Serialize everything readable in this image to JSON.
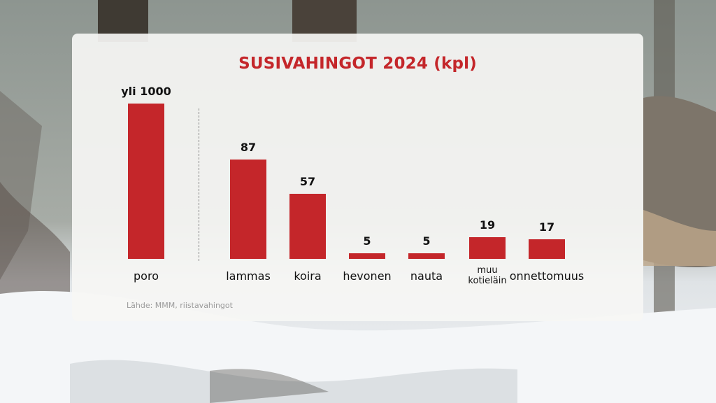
{
  "chart_data": {
    "type": "bar",
    "title": "SUSIVAHINGOT 2024 (kpl)",
    "categories": [
      "poro",
      "lammas",
      "koira",
      "hevonen",
      "nauta",
      "muu kotieläin",
      "onnettomuus"
    ],
    "category_lines": [
      [
        "poro"
      ],
      [
        "lammas"
      ],
      [
        "koira"
      ],
      [
        "hevonen"
      ],
      [
        "nauta"
      ],
      [
        "muu",
        "kotieläin"
      ],
      [
        "onnettomuus"
      ]
    ],
    "values": [
      1000,
      87,
      57,
      5,
      5,
      19,
      17
    ],
    "value_labels": [
      "yli 1000",
      "87",
      "57",
      "5",
      "5",
      "19",
      "17"
    ],
    "axis_break_after_category": "poro",
    "bar_color": "#c4262a",
    "source": "Lähde: MMM, riistavahingot"
  },
  "colors": {
    "accent": "#c4262a",
    "panel": "#f6f6f4"
  }
}
